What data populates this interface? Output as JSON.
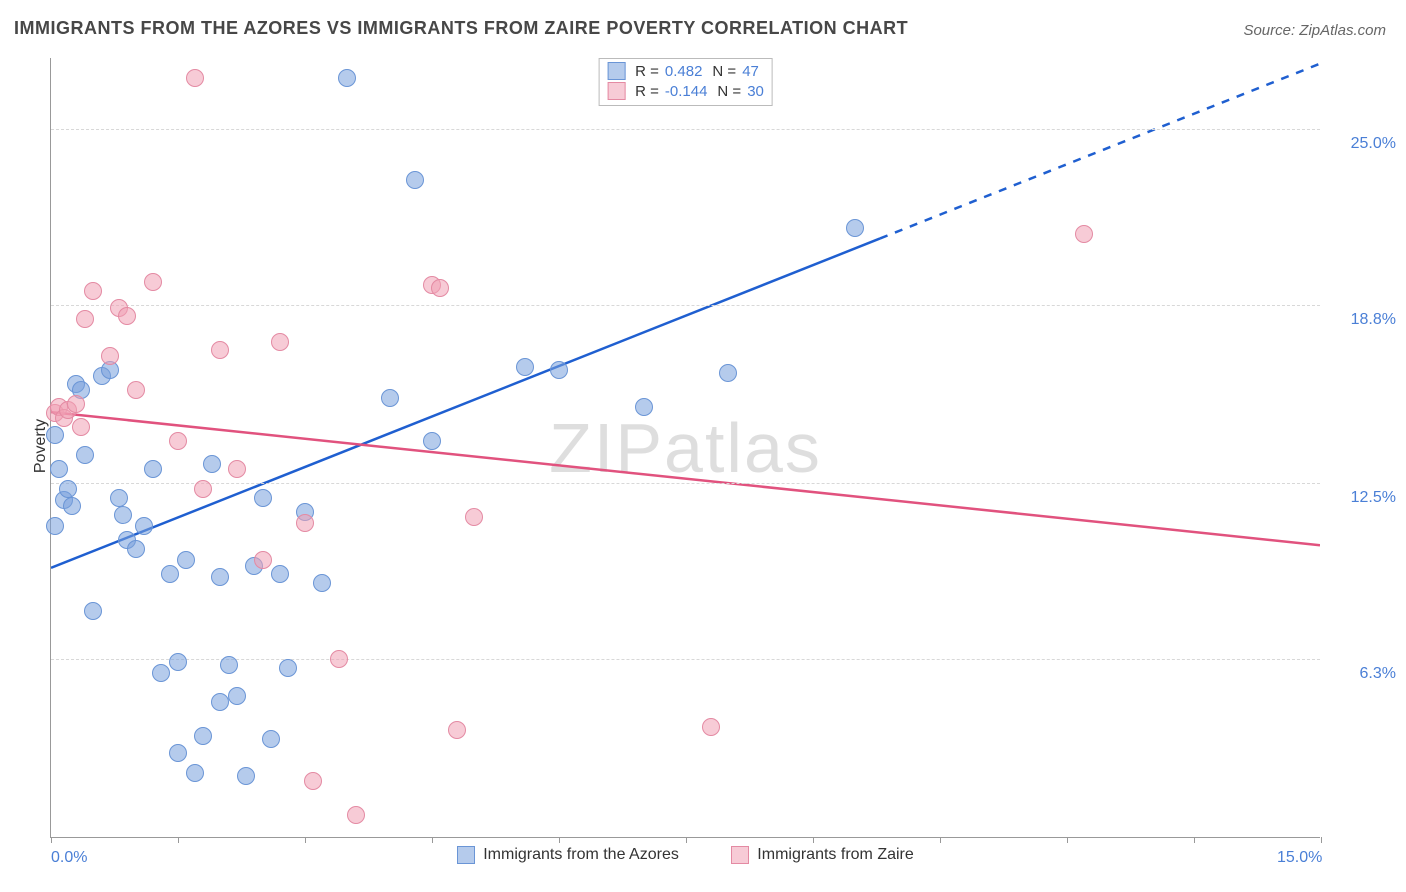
{
  "title": "IMMIGRANTS FROM THE AZORES VS IMMIGRANTS FROM ZAIRE POVERTY CORRELATION CHART",
  "source": "Source: ZipAtlas.com",
  "watermark": "ZIPatlas",
  "yaxis_title": "Poverty",
  "chart": {
    "type": "scatter",
    "background_color": "#ffffff",
    "grid_color": "#d8d8d8",
    "axis_color": "#999999",
    "title_fontsize": 18,
    "label_fontsize": 16,
    "tick_fontsize": 16,
    "xlim": [
      0.0,
      15.0
    ],
    "ylim": [
      0.0,
      27.5
    ],
    "xticks": [
      0.0,
      1.5,
      3.0,
      4.5,
      6.0,
      7.5,
      9.0,
      10.5,
      12.0,
      13.5,
      15.0
    ],
    "xtick_labels_shown": {
      "0": "0.0%",
      "10": "15.0%"
    },
    "yticks": [
      6.3,
      12.5,
      18.8,
      25.0
    ],
    "ytick_labels": [
      "6.3%",
      "12.5%",
      "18.8%",
      "25.0%"
    ],
    "series": [
      {
        "name": "Immigrants from the Azores",
        "fill_color": "rgba(120,160,220,0.55)",
        "stroke_color": "#6a95d6",
        "line_color": "#1f5fd0",
        "line_width": 2.5,
        "r_label": "R =",
        "r_value": "0.482",
        "n_label": "N =",
        "n_value": "47",
        "trend": {
          "x1": 0.0,
          "y1": 9.5,
          "x2": 15.0,
          "y2": 27.3,
          "solid_until_x": 9.8
        },
        "points": [
          [
            0.05,
            14.2
          ],
          [
            0.1,
            13.0
          ],
          [
            0.15,
            11.9
          ],
          [
            0.2,
            12.3
          ],
          [
            0.25,
            11.7
          ],
          [
            0.3,
            16.0
          ],
          [
            0.35,
            15.8
          ],
          [
            0.4,
            13.5
          ],
          [
            0.5,
            8.0
          ],
          [
            0.6,
            16.3
          ],
          [
            0.7,
            16.5
          ],
          [
            0.8,
            12.0
          ],
          [
            0.85,
            11.4
          ],
          [
            0.9,
            10.5
          ],
          [
            1.0,
            10.2
          ],
          [
            1.1,
            11.0
          ],
          [
            1.2,
            13.0
          ],
          [
            1.3,
            5.8
          ],
          [
            1.4,
            9.3
          ],
          [
            1.5,
            6.2
          ],
          [
            1.5,
            3.0
          ],
          [
            1.6,
            9.8
          ],
          [
            1.7,
            2.3
          ],
          [
            1.8,
            3.6
          ],
          [
            1.9,
            13.2
          ],
          [
            2.0,
            9.2
          ],
          [
            2.0,
            4.8
          ],
          [
            2.1,
            6.1
          ],
          [
            2.2,
            5.0
          ],
          [
            2.3,
            2.2
          ],
          [
            2.4,
            9.6
          ],
          [
            2.5,
            12.0
          ],
          [
            2.6,
            3.5
          ],
          [
            2.7,
            9.3
          ],
          [
            2.8,
            6.0
          ],
          [
            3.0,
            11.5
          ],
          [
            3.2,
            9.0
          ],
          [
            3.5,
            26.8
          ],
          [
            4.0,
            15.5
          ],
          [
            4.3,
            23.2
          ],
          [
            4.5,
            14.0
          ],
          [
            5.6,
            16.6
          ],
          [
            6.0,
            16.5
          ],
          [
            7.0,
            15.2
          ],
          [
            8.0,
            16.4
          ],
          [
            9.5,
            21.5
          ],
          [
            0.05,
            11.0
          ]
        ]
      },
      {
        "name": "Immigrants from Zaire",
        "fill_color": "rgba(240,160,180,0.55)",
        "stroke_color": "#e48aa3",
        "line_color": "#e1527e",
        "line_width": 2.5,
        "r_label": "R =",
        "r_value": "-0.144",
        "n_label": "N =",
        "n_value": "30",
        "trend": {
          "x1": 0.0,
          "y1": 15.0,
          "x2": 15.0,
          "y2": 10.3,
          "solid_until_x": 15.0
        },
        "points": [
          [
            0.05,
            15.0
          ],
          [
            0.1,
            15.2
          ],
          [
            0.15,
            14.8
          ],
          [
            0.2,
            15.1
          ],
          [
            0.3,
            15.3
          ],
          [
            0.35,
            14.5
          ],
          [
            0.4,
            18.3
          ],
          [
            0.5,
            19.3
          ],
          [
            0.7,
            17.0
          ],
          [
            0.8,
            18.7
          ],
          [
            0.9,
            18.4
          ],
          [
            1.0,
            15.8
          ],
          [
            1.2,
            19.6
          ],
          [
            1.5,
            14.0
          ],
          [
            1.7,
            26.8
          ],
          [
            1.8,
            12.3
          ],
          [
            2.0,
            17.2
          ],
          [
            2.2,
            13.0
          ],
          [
            2.5,
            9.8
          ],
          [
            2.7,
            17.5
          ],
          [
            3.0,
            11.1
          ],
          [
            3.1,
            2.0
          ],
          [
            3.4,
            6.3
          ],
          [
            3.6,
            0.8
          ],
          [
            4.5,
            19.5
          ],
          [
            4.6,
            19.4
          ],
          [
            4.8,
            3.8
          ],
          [
            5.0,
            11.3
          ],
          [
            7.8,
            3.9
          ],
          [
            12.2,
            21.3
          ]
        ]
      }
    ]
  },
  "legend_box": {
    "value_color": "#4a7fd6"
  }
}
